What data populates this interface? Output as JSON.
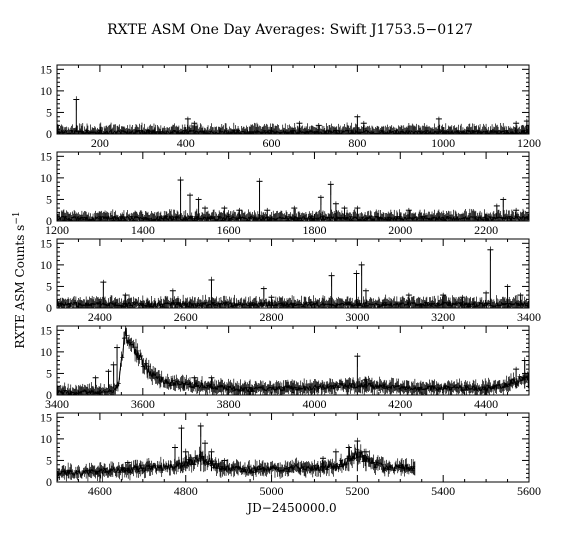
{
  "chart_data": {
    "type": "line",
    "title": "RXTE ASM One Day Averages: Swift J1753.5−0127",
    "xlabel": "JD−2450000.0",
    "ylabel_main": "RXTE ASM Counts s",
    "ylabel_sup": "−1",
    "ylim": [
      0,
      16
    ],
    "yticks": [
      0,
      5,
      10,
      15
    ],
    "panels": [
      {
        "xlim": [
          100,
          1200
        ],
        "xticks": [
          200,
          400,
          600,
          800,
          1000,
          1200
        ],
        "baseline": 0.4,
        "series": [],
        "spikes": [
          [
            145,
            8
          ],
          [
            405,
            3.5
          ],
          [
            420,
            2.5
          ],
          [
            665,
            2.5
          ],
          [
            710,
            2
          ],
          [
            800,
            4
          ],
          [
            815,
            2.5
          ],
          [
            990,
            3.5
          ],
          [
            1170,
            2.5
          ],
          [
            1195,
            3
          ]
        ]
      },
      {
        "xlim": [
          1200,
          2300
        ],
        "xticks": [
          1200,
          1400,
          1600,
          1800,
          2000,
          2200
        ],
        "baseline": 0.6,
        "series": [],
        "spikes": [
          [
            1488,
            9.5
          ],
          [
            1510,
            6
          ],
          [
            1530,
            5
          ],
          [
            1545,
            3
          ],
          [
            1590,
            3
          ],
          [
            1625,
            2.5
          ],
          [
            1672,
            9.2
          ],
          [
            1690,
            2.5
          ],
          [
            1753,
            3
          ],
          [
            1815,
            5.5
          ],
          [
            1838,
            8.5
          ],
          [
            1850,
            4
          ],
          [
            1870,
            3
          ],
          [
            1900,
            3
          ],
          [
            2020,
            2.5
          ],
          [
            2225,
            3.5
          ],
          [
            2240,
            5
          ],
          [
            2270,
            2.5
          ]
        ]
      },
      {
        "xlim": [
          2300,
          3400
        ],
        "xticks": [
          2400,
          2600,
          2800,
          3000,
          3200,
          3400
        ],
        "baseline": 0.8,
        "series": [],
        "spikes": [
          [
            2408,
            6
          ],
          [
            2460,
            3
          ],
          [
            2570,
            4
          ],
          [
            2660,
            6.5
          ],
          [
            2782,
            4.5
          ],
          [
            2800,
            2.5
          ],
          [
            2940,
            7.5
          ],
          [
            2998,
            8
          ],
          [
            3010,
            10
          ],
          [
            3020,
            4
          ],
          [
            3120,
            3
          ],
          [
            3200,
            3
          ],
          [
            3245,
            2.5
          ],
          [
            3300,
            3.5
          ],
          [
            3310,
            13.5
          ],
          [
            3350,
            5
          ],
          [
            3380,
            3
          ]
        ]
      },
      {
        "xlim": [
          3400,
          4500
        ],
        "xticks": [
          3400,
          3600,
          3800,
          4000,
          4200,
          4400
        ],
        "baseline": 1.5,
        "series": [
          [
            3400,
            0.6
          ],
          [
            3450,
            0.7
          ],
          [
            3500,
            0.8
          ],
          [
            3530,
            1
          ],
          [
            3545,
            3
          ],
          [
            3552,
            10
          ],
          [
            3556,
            13
          ],
          [
            3560,
            14
          ],
          [
            3565,
            13.5
          ],
          [
            3570,
            12.5
          ],
          [
            3575,
            11.5
          ],
          [
            3580,
            10.5
          ],
          [
            3590,
            9
          ],
          [
            3600,
            7.5
          ],
          [
            3610,
            6
          ],
          [
            3620,
            5
          ],
          [
            3630,
            4
          ],
          [
            3645,
            3.5
          ],
          [
            3660,
            3
          ],
          [
            3680,
            2.6
          ],
          [
            3700,
            2.4
          ],
          [
            3750,
            2
          ],
          [
            3800,
            1.5
          ],
          [
            3850,
            1.3
          ],
          [
            3900,
            1.5
          ],
          [
            3950,
            1.6
          ],
          [
            4000,
            1.8
          ],
          [
            4050,
            2
          ],
          [
            4100,
            2.2
          ],
          [
            4150,
            2
          ],
          [
            4200,
            1.8
          ],
          [
            4250,
            1.6
          ],
          [
            4300,
            1.6
          ],
          [
            4350,
            1.6
          ],
          [
            4400,
            1.5
          ],
          [
            4440,
            2
          ],
          [
            4460,
            3
          ],
          [
            4480,
            3.5
          ],
          [
            4500,
            4
          ]
        ],
        "spikes": [
          [
            3490,
            4
          ],
          [
            3520,
            5.5
          ],
          [
            3532,
            7
          ],
          [
            3540,
            11
          ],
          [
            3720,
            4
          ],
          [
            3760,
            4
          ],
          [
            4100,
            9
          ],
          [
            4120,
            3.5
          ],
          [
            4470,
            6
          ],
          [
            4490,
            8
          ]
        ]
      },
      {
        "xlim": [
          4500,
          5600
        ],
        "xticks": [
          4600,
          4800,
          5000,
          5200,
          5400,
          5600
        ],
        "baseline": 2.5,
        "series": [
          [
            4500,
            2
          ],
          [
            4550,
            2.2
          ],
          [
            4600,
            2.4
          ],
          [
            4650,
            2.8
          ],
          [
            4700,
            3.2
          ],
          [
            4750,
            3.4
          ],
          [
            4780,
            3.8
          ],
          [
            4800,
            4
          ],
          [
            4830,
            5.5
          ],
          [
            4850,
            5
          ],
          [
            4880,
            3.5
          ],
          [
            4900,
            3
          ],
          [
            4950,
            2.8
          ],
          [
            5000,
            3
          ],
          [
            5050,
            3.2
          ],
          [
            5100,
            3.3
          ],
          [
            5150,
            3.6
          ],
          [
            5170,
            4.5
          ],
          [
            5180,
            5.5
          ],
          [
            5200,
            6.5
          ],
          [
            5220,
            5
          ],
          [
            5240,
            4
          ],
          [
            5260,
            3.5
          ],
          [
            5300,
            3.3
          ],
          [
            5330,
            3
          ]
        ],
        "spikes": [
          [
            4665,
            4.5
          ],
          [
            4775,
            8
          ],
          [
            4790,
            12.5
          ],
          [
            4800,
            7
          ],
          [
            4835,
            13
          ],
          [
            4845,
            9
          ],
          [
            4860,
            7
          ],
          [
            4890,
            5
          ],
          [
            5120,
            5.5
          ],
          [
            5150,
            7
          ],
          [
            5180,
            8
          ],
          [
            5200,
            9.5
          ],
          [
            5220,
            7
          ]
        ]
      }
    ]
  }
}
